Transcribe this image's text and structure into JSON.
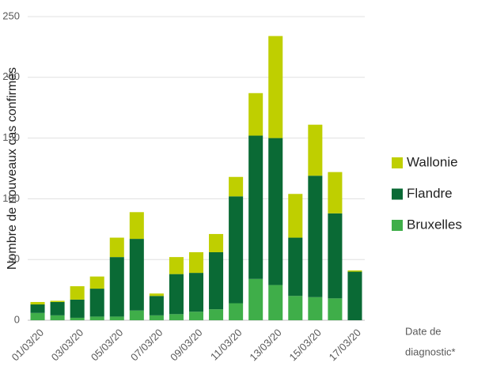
{
  "chart_data": {
    "type": "stacked_bar",
    "y_label": "Nombre de nouveaux cas confirmés",
    "x_label": [
      "Date de",
      "diagnostic*"
    ],
    "categories": [
      "01/03/20",
      null,
      "03/03/20",
      null,
      "05/03/20",
      null,
      "07/03/20",
      null,
      "09/03/20",
      null,
      "11/03/20",
      null,
      "13/03/20",
      null,
      "15/03/20",
      null,
      "17/03/20"
    ],
    "series": [
      {
        "name": "Bruxelles",
        "color": "#3fae49",
        "values": [
          6,
          4,
          2,
          3,
          3,
          8,
          4,
          5,
          7,
          9,
          14,
          34,
          29,
          20,
          19,
          18,
          0
        ]
      },
      {
        "name": "Flandre",
        "color": "#0a6a35",
        "values": [
          7,
          11,
          15,
          23,
          49,
          59,
          16,
          33,
          32,
          47,
          88,
          118,
          121,
          48,
          100,
          70,
          40
        ]
      },
      {
        "name": "Wallonie",
        "color": "#bfcf00",
        "values": [
          2,
          1,
          11,
          10,
          16,
          22,
          2,
          14,
          17,
          15,
          16,
          35,
          84,
          36,
          42,
          34,
          1
        ]
      }
    ],
    "ylim": [
      0,
      250
    ],
    "yticks": [
      0,
      50,
      100,
      150,
      200,
      250
    ],
    "grid": true
  }
}
